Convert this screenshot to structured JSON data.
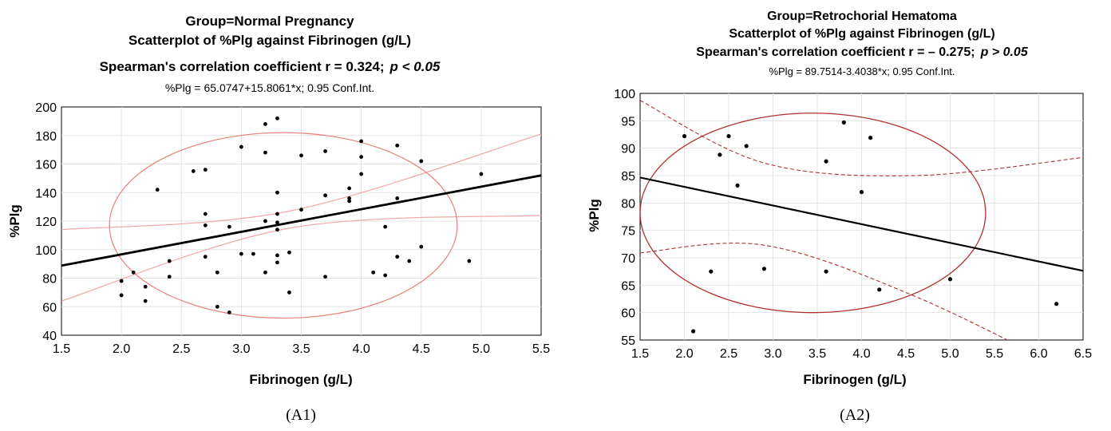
{
  "chart_data": [
    {
      "type": "scatter",
      "panel_label": "(A1)",
      "group_title": "Group=Normal Pregnancy",
      "plot_title": "Scatterplot of %Plg against Fibrinogen (g/L)",
      "stat_prefix": "Spearman's correlation coefficient r = 0.324;",
      "p_text": "p < 0.05",
      "equation": "%Plg = 65.0747+15.8061*x; 0.95 Conf.Int.",
      "xlabel": "Fibrinogen (g/L)",
      "ylabel": "%Plg",
      "xlim": [
        1.5,
        5.5
      ],
      "ylim": [
        40,
        200
      ],
      "xticks": [
        "1.5",
        "2.0",
        "2.5",
        "3.0",
        "3.5",
        "4.0",
        "4.5",
        "5.0",
        "5.5"
      ],
      "yticks": [
        "40",
        "60",
        "80",
        "100",
        "120",
        "140",
        "160",
        "180",
        "200"
      ],
      "regression": {
        "intercept": 65.0747,
        "slope": 15.8061
      },
      "ci_band": {
        "x": [
          1.5,
          3.4,
          5.5
        ],
        "lower": [
          64,
          115,
          124
        ],
        "upper": [
          114,
          127,
          181
        ]
      },
      "ellipse": {
        "center": [
          3.35,
          117
        ],
        "semi_axis_x": 1.45,
        "semi_axis_y": 65,
        "rotation_deg": 0
      },
      "grid": true,
      "colors": {
        "points": "#000000",
        "regression": "#000000",
        "band": "#f4a6a6",
        "ellipse": "#e8807a"
      },
      "points": {
        "x": [
          2.0,
          2.0,
          2.1,
          2.2,
          2.2,
          2.3,
          2.4,
          2.4,
          2.6,
          2.7,
          2.7,
          2.7,
          2.7,
          2.8,
          2.8,
          2.9,
          2.9,
          3.0,
          3.0,
          3.1,
          3.2,
          3.2,
          3.2,
          3.2,
          3.3,
          3.3,
          3.3,
          3.3,
          3.3,
          3.3,
          3.3,
          3.4,
          3.4,
          3.5,
          3.5,
          3.7,
          3.7,
          3.7,
          3.9,
          3.9,
          3.9,
          4.0,
          4.0,
          4.0,
          4.1,
          4.2,
          4.2,
          4.3,
          4.3,
          4.3,
          4.4,
          4.5,
          4.5,
          4.9,
          5.0
        ],
        "y": [
          78,
          68,
          84,
          74,
          64,
          142,
          92,
          81,
          155,
          156,
          125,
          117,
          95,
          84,
          60,
          116,
          56,
          172,
          97,
          97,
          188,
          168,
          120,
          84,
          192,
          140,
          125,
          119,
          114,
          96,
          91,
          98,
          70,
          166,
          128,
          169,
          138,
          81,
          143,
          136,
          134,
          176,
          165,
          153,
          84,
          116,
          82,
          173,
          136,
          95,
          92,
          162,
          102,
          92,
          153
        ]
      }
    },
    {
      "type": "scatter",
      "panel_label": "(A2)",
      "group_title": "Group=Retrochorial Hematoma",
      "plot_title": "Scatterplot of %Plg against Fibrinogen (g/L)",
      "stat_prefix": "Spearman's correlation coefficient r = – 0.275;",
      "p_text": "p > 0.05",
      "equation": "%Plg = 89.7514-3.4038*x; 0.95 Conf.Int.",
      "xlabel": "Fibrinogen (g/L)",
      "ylabel": "%Plg",
      "xlim": [
        1.5,
        6.5
      ],
      "ylim": [
        55,
        100
      ],
      "xticks": [
        "1.5",
        "2.0",
        "2.5",
        "3.0",
        "3.5",
        "4.0",
        "4.5",
        "5.0",
        "5.5",
        "6.0",
        "6.5"
      ],
      "yticks": [
        "55",
        "60",
        "65",
        "70",
        "75",
        "80",
        "85",
        "90",
        "95",
        "100"
      ],
      "regression": {
        "intercept": 89.7514,
        "slope": -3.4038
      },
      "ci_band": {
        "x": [
          1.5,
          2.9,
          4.6,
          6.5
        ],
        "lower": [
          70.9,
          72.3,
          63,
          48
        ],
        "upper": [
          98.7,
          87.3,
          85,
          88.3
        ]
      },
      "ellipse": {
        "center": [
          3.45,
          78.2
        ],
        "semi_axis_x": 1.95,
        "semi_axis_y": 18.2,
        "rotation_deg": 0
      },
      "grid": true,
      "colors": {
        "points": "#000000",
        "regression": "#000000",
        "band": "#b03030",
        "ellipse": "#b03030"
      },
      "points": {
        "x": [
          2.0,
          2.1,
          2.3,
          2.4,
          2.5,
          2.6,
          2.7,
          2.9,
          3.6,
          3.6,
          3.8,
          4.0,
          4.1,
          4.2,
          5.0,
          6.2
        ],
        "y": [
          92.2,
          56.6,
          67.5,
          88.8,
          92.2,
          83.2,
          90.4,
          68.0,
          87.6,
          67.5,
          94.7,
          82.0,
          91.9,
          64.2,
          66.1,
          61.6
        ]
      }
    }
  ]
}
